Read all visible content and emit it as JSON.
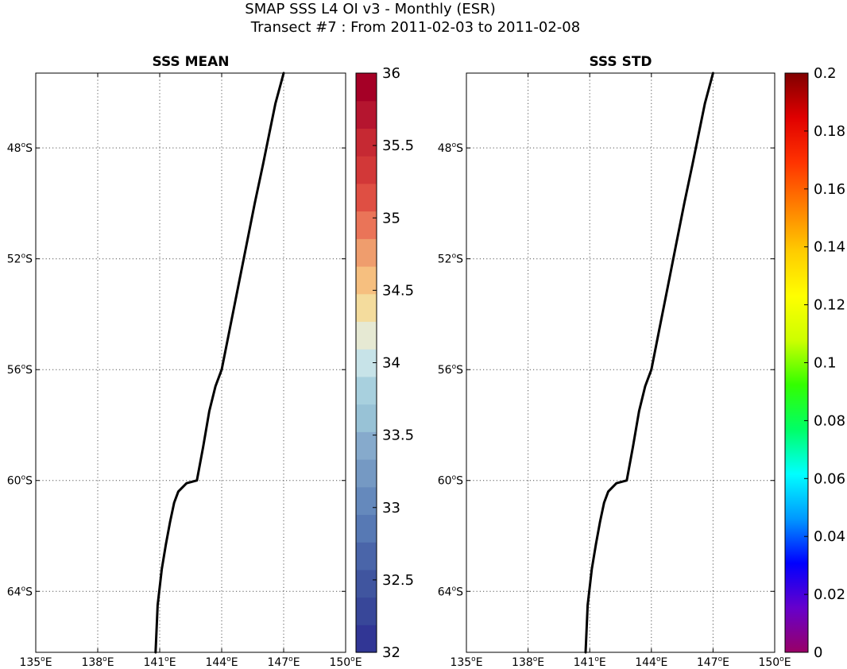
{
  "figure": {
    "title_line1": "SMAP SSS L4 OI v3 - Monthly (ESR)",
    "title_line2": "Transect #7 : From 2011-02-03 to 2011-02-08"
  },
  "chart_data": [
    {
      "type": "line",
      "title": "SSS MEAN",
      "xlabel": "",
      "ylabel": "",
      "xlim": [
        135,
        150
      ],
      "ylim": [
        -66.2,
        -45.3
      ],
      "grid": true,
      "x_ticks": [
        {
          "value": 135,
          "deg": "135",
          "suffix": "E"
        },
        {
          "value": 138,
          "deg": "138",
          "suffix": "E"
        },
        {
          "value": 141,
          "deg": "141",
          "suffix": "E"
        },
        {
          "value": 144,
          "deg": "144",
          "suffix": "E"
        },
        {
          "value": 147,
          "deg": "147",
          "suffix": "E"
        },
        {
          "value": 150,
          "deg": "150",
          "suffix": "E"
        }
      ],
      "y_ticks": [
        {
          "value": -48,
          "deg": "48",
          "suffix": "S"
        },
        {
          "value": -52,
          "deg": "52",
          "suffix": "S"
        },
        {
          "value": -56,
          "deg": "56",
          "suffix": "S"
        },
        {
          "value": -60,
          "deg": "60",
          "suffix": "S"
        },
        {
          "value": -64,
          "deg": "64",
          "suffix": "S"
        }
      ],
      "series": [
        {
          "x": [
            140.8,
            140.9,
            141.1,
            141.3,
            141.5,
            141.7,
            141.9,
            142.3,
            142.8,
            143.1,
            143.4,
            143.7,
            144.0,
            144.4,
            144.8,
            145.2,
            145.6,
            146.0,
            146.3,
            146.6,
            147.0
          ],
          "y": [
            -66.2,
            -64.5,
            -63.2,
            -62.3,
            -61.5,
            -60.8,
            -60.4,
            -60.1,
            -60.0,
            -58.8,
            -57.5,
            -56.6,
            -56.0,
            -54.5,
            -53.0,
            -51.5,
            -50.0,
            -48.6,
            -47.5,
            -46.4,
            -45.3
          ]
        }
      ],
      "colorbar": {
        "min": 32,
        "max": 36,
        "ticks": [
          "32",
          "32.5",
          "33",
          "33.5",
          "34",
          "34.5",
          "35",
          "35.5",
          "36"
        ],
        "colors": [
          "#313695",
          "#384799",
          "#40559f",
          "#4a65a9",
          "#5779b4",
          "#6589bc",
          "#7599c3",
          "#86aacc",
          "#98c2d6",
          "#a8d0de",
          "#c7e3e8",
          "#e6e9d3",
          "#f4dc9d",
          "#f6bf7f",
          "#ef9d6d",
          "#ea7458",
          "#df4f43",
          "#d23838",
          "#c62933",
          "#b5152f",
          "#a50026"
        ]
      }
    },
    {
      "type": "line",
      "title": "SSS STD",
      "xlabel": "",
      "ylabel": "",
      "xlim": [
        135,
        150
      ],
      "ylim": [
        -66.2,
        -45.3
      ],
      "grid": true,
      "x_ticks": [
        {
          "value": 135,
          "deg": "135",
          "suffix": "E"
        },
        {
          "value": 138,
          "deg": "138",
          "suffix": "E"
        },
        {
          "value": 141,
          "deg": "141",
          "suffix": "E"
        },
        {
          "value": 144,
          "deg": "144",
          "suffix": "E"
        },
        {
          "value": 147,
          "deg": "147",
          "suffix": "E"
        },
        {
          "value": 150,
          "deg": "150",
          "suffix": "E"
        }
      ],
      "y_ticks": [
        {
          "value": -48,
          "deg": "48",
          "suffix": "S"
        },
        {
          "value": -52,
          "deg": "52",
          "suffix": "S"
        },
        {
          "value": -56,
          "deg": "56",
          "suffix": "S"
        },
        {
          "value": -60,
          "deg": "60",
          "suffix": "S"
        },
        {
          "value": -64,
          "deg": "64",
          "suffix": "S"
        }
      ],
      "series": [
        {
          "x": [
            140.8,
            140.9,
            141.1,
            141.3,
            141.5,
            141.7,
            141.9,
            142.3,
            142.8,
            143.1,
            143.4,
            143.7,
            144.0,
            144.4,
            144.8,
            145.2,
            145.6,
            146.0,
            146.3,
            146.6,
            147.0
          ],
          "y": [
            -66.2,
            -64.5,
            -63.2,
            -62.3,
            -61.5,
            -60.8,
            -60.4,
            -60.1,
            -60.0,
            -58.8,
            -57.5,
            -56.6,
            -56.0,
            -54.5,
            -53.0,
            -51.5,
            -50.0,
            -48.6,
            -47.5,
            -46.4,
            -45.3
          ]
        }
      ],
      "colorbar": {
        "min": 0,
        "max": 0.2,
        "ticks": [
          "0",
          "0.02",
          "0.04",
          "0.06",
          "0.08",
          "0.1",
          "0.12",
          "0.14",
          "0.16",
          "0.18",
          "0.2"
        ],
        "colormap": "jet",
        "gradient": [
          "#990066",
          "#6600cc",
          "#0000ff",
          "#0099ff",
          "#00ffff",
          "#00ff66",
          "#33ff00",
          "#ccff00",
          "#ffff00",
          "#ffcc00",
          "#ff8000",
          "#ff3300",
          "#e00000",
          "#800000"
        ]
      }
    }
  ]
}
